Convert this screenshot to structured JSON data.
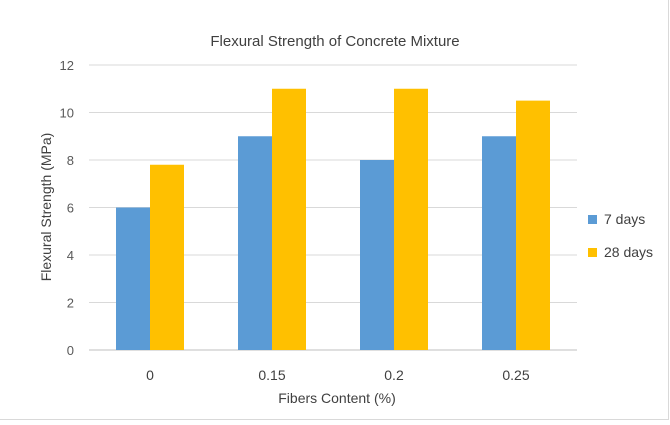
{
  "chart_data": {
    "type": "bar",
    "title": "Flexural Strength of Concrete Mixture",
    "xlabel": "Fibers Content (%)",
    "ylabel": "Flexural Strength (MPa)",
    "categories": [
      "0",
      "0.15",
      "0.2",
      "0.25"
    ],
    "series": [
      {
        "name": "7 days",
        "values": [
          6,
          9,
          8,
          9
        ],
        "color": "#5b9bd5"
      },
      {
        "name": "28 days",
        "values": [
          7.8,
          11,
          11,
          10.5
        ],
        "color": "#ffc000"
      }
    ],
    "ylim": [
      0,
      12
    ],
    "yticks": [
      0,
      2,
      4,
      6,
      8,
      10,
      12
    ],
    "grid": true,
    "legend_position": "right"
  }
}
